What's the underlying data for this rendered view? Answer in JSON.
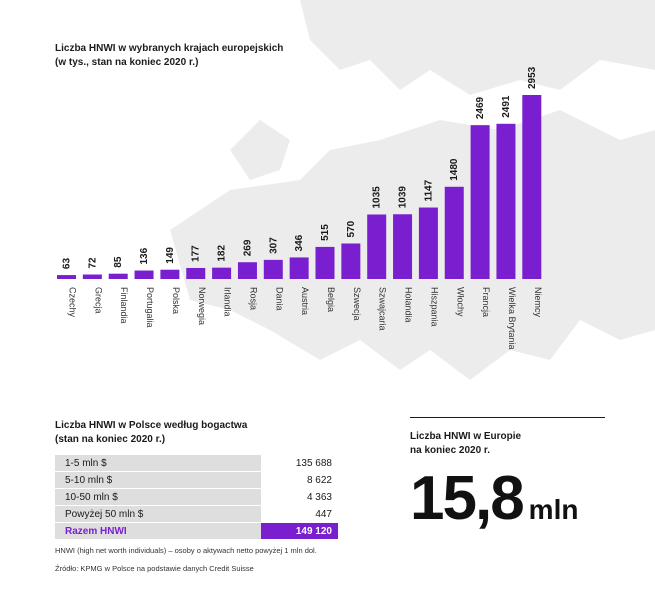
{
  "chart_title_line1": "Liczba HNWI w wybranych krajach europejskich",
  "chart_title_line2": "(w tys., stan na koniec 2020 r.)",
  "chart_data": {
    "type": "bar",
    "title": "Liczba HNWI w wybranych krajach europejskich (w tys., stan na koniec 2020 r.)",
    "categories": [
      "Czechy",
      "Grecja",
      "Finlandia",
      "Portugalia",
      "Polska",
      "Norwegia",
      "Irlandia",
      "Rosja",
      "Dania",
      "Austria",
      "Belgia",
      "Szwecja",
      "Szwajcaria",
      "Holandia",
      "Hiszpania",
      "Włochy",
      "Francja",
      "Wielka Brytania",
      "Niemcy"
    ],
    "values": [
      63,
      72,
      85,
      136,
      149,
      177,
      182,
      269,
      307,
      346,
      515,
      570,
      1035,
      1039,
      1147,
      1480,
      2469,
      2491,
      2953
    ],
    "ylim": [
      0,
      2953
    ],
    "xlabel": "",
    "ylabel": "",
    "bar_color": "#7a1fd0"
  },
  "table": {
    "title_line1": "Liczba HNWI w Polsce według bogactwa",
    "title_line2": "(stan na koniec 2020 r.)",
    "rows": [
      {
        "label": "1-5 mln $",
        "value": "135 688"
      },
      {
        "label": "5-10 mln $",
        "value": "8 622"
      },
      {
        "label": "10-50 mln $",
        "value": "4 363"
      },
      {
        "label": "Powyżej 50 mln $",
        "value": "447"
      }
    ],
    "total": {
      "label": "Razem HNWI",
      "value": "149 120"
    }
  },
  "footnote": "HNWI (high net worth individuals) – osoby o aktywach netto powyżej 1 mln dol.",
  "source": "Źródło: KPMG w Polsce na podstawie danych Credit Suisse",
  "europe": {
    "title_line1": "Liczba HNWI w Europie",
    "title_line2": "na koniec 2020 r.",
    "big_value": "15,8",
    "big_unit": "mln"
  },
  "colors": {
    "accent": "#7a1fd0",
    "map": "#ececec",
    "table_label_bg": "#dedede"
  }
}
